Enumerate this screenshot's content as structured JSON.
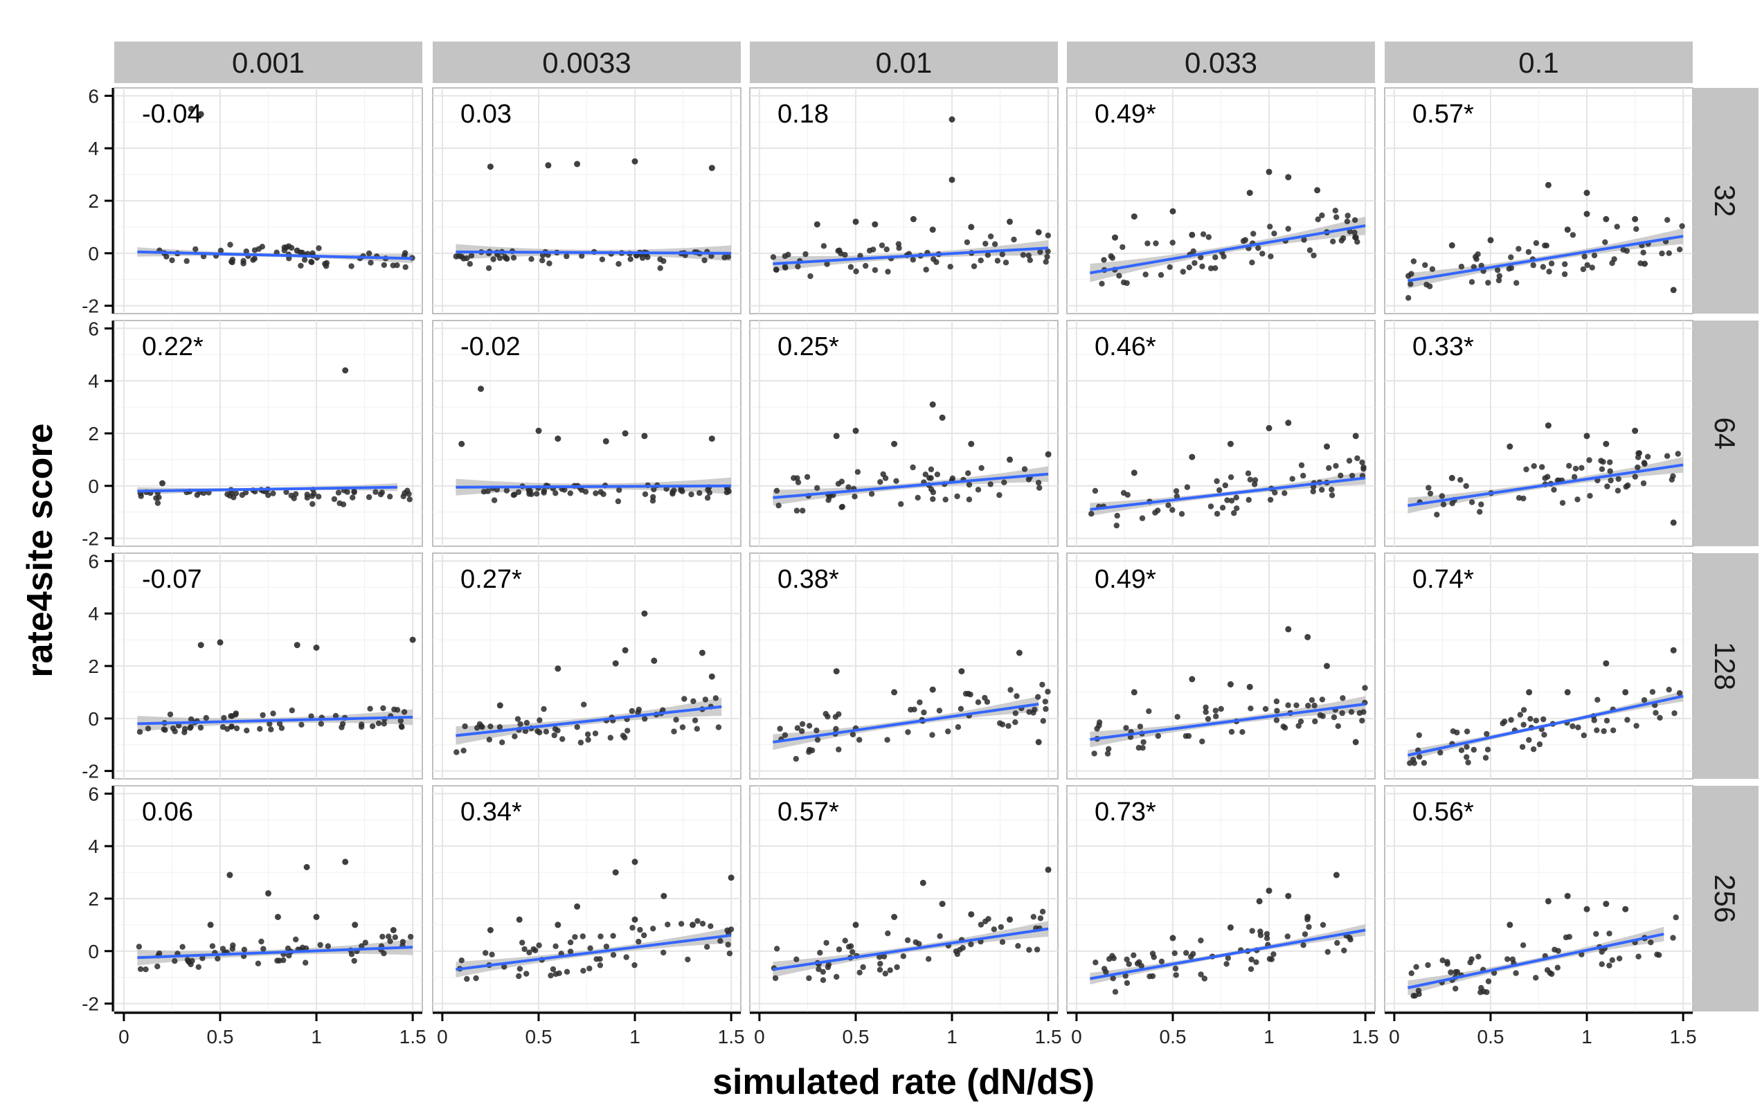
{
  "chart_data": {
    "type": "scatter",
    "xlabel": "simulated rate (dN/dS)",
    "ylabel": "rate4site score",
    "xlim": [
      -0.05,
      1.55
    ],
    "ylim": [
      -2.3,
      6.3
    ],
    "x_ticks": [
      0,
      0.5,
      1,
      1.5
    ],
    "x_tick_labels": [
      "0",
      "0.5",
      "1",
      "1.5"
    ],
    "y_ticks": [
      -2,
      0,
      2,
      4,
      6
    ],
    "y_tick_labels": [
      "-2",
      "0",
      "2",
      "4",
      "6"
    ],
    "grid": true,
    "column_facet": [
      "0.001",
      "0.0033",
      "0.01",
      "0.033",
      "0.1"
    ],
    "row_facet": [
      "32",
      "64",
      "128",
      "256"
    ],
    "correlations": [
      [
        "-0.04",
        "0.03",
        "0.18",
        "0.49*",
        "0.57*"
      ],
      [
        "0.22*",
        "-0.02",
        "0.25*",
        "0.46*",
        "0.33*"
      ],
      [
        "-0.07",
        "0.27*",
        "0.38*",
        "0.49*",
        "0.74*"
      ],
      [
        "0.06",
        "0.34*",
        "0.57*",
        "0.73*",
        "0.56*"
      ]
    ],
    "fit_lines": [
      [
        [
          0.07,
          0.05,
          1.5,
          -0.2
        ],
        [
          0.07,
          0.05,
          1.5,
          0.0
        ],
        [
          0.07,
          -0.4,
          1.5,
          0.2
        ],
        [
          0.07,
          -0.75,
          1.5,
          1.05
        ],
        [
          0.07,
          -1.05,
          1.5,
          0.65
        ]
      ],
      [
        [
          0.07,
          -0.2,
          1.42,
          -0.05
        ],
        [
          0.07,
          -0.05,
          1.5,
          0.0
        ],
        [
          0.07,
          -0.45,
          1.5,
          0.45
        ],
        [
          0.07,
          -0.9,
          1.5,
          0.3
        ],
        [
          0.07,
          -0.75,
          1.5,
          0.8
        ]
      ],
      [
        [
          0.07,
          -0.2,
          1.5,
          0.05
        ],
        [
          0.07,
          -0.65,
          1.45,
          0.45
        ],
        [
          0.07,
          -0.9,
          1.45,
          0.55
        ],
        [
          0.07,
          -0.8,
          1.5,
          0.55
        ],
        [
          0.07,
          -1.4,
          1.5,
          0.85
        ]
      ],
      [
        [
          0.07,
          -0.25,
          1.5,
          0.15
        ],
        [
          0.07,
          -0.7,
          1.5,
          0.6
        ],
        [
          0.07,
          -0.7,
          1.5,
          0.85
        ],
        [
          0.07,
          -1.05,
          1.5,
          0.8
        ],
        [
          0.07,
          -1.4,
          1.4,
          0.65
        ]
      ]
    ],
    "band_halfwidth": [
      [
        0.18,
        0.3,
        0.3,
        0.35,
        0.3
      ],
      [
        0.15,
        0.32,
        0.3,
        0.25,
        0.3
      ],
      [
        0.3,
        0.35,
        0.3,
        0.3,
        0.2
      ],
      [
        0.3,
        0.3,
        0.3,
        0.22,
        0.28
      ]
    ],
    "outliers": [
      [
        [
          [
            0.35,
            5.5
          ],
          [
            0.4,
            5.3
          ],
          [
            0.9,
            0.1
          ]
        ],
        [
          [
            0.25,
            3.3
          ],
          [
            0.55,
            3.35
          ],
          [
            0.7,
            3.4
          ],
          [
            1.0,
            3.5
          ],
          [
            1.4,
            3.25
          ]
        ],
        [
          [
            0.3,
            1.1
          ],
          [
            0.5,
            1.2
          ],
          [
            0.6,
            1.1
          ],
          [
            0.8,
            1.3
          ],
          [
            0.9,
            0.9
          ],
          [
            1.0,
            5.1
          ],
          [
            1.0,
            2.8
          ],
          [
            1.1,
            1.0
          ],
          [
            1.3,
            1.2
          ],
          [
            1.45,
            0.8
          ]
        ],
        [
          [
            0.2,
            0.6
          ],
          [
            0.3,
            1.4
          ],
          [
            0.5,
            1.6
          ],
          [
            0.6,
            0.7
          ],
          [
            0.9,
            2.3
          ],
          [
            1.0,
            3.1
          ],
          [
            1.1,
            2.9
          ],
          [
            1.25,
            2.4
          ],
          [
            1.3,
            0.8
          ],
          [
            1.45,
            0.6
          ]
        ],
        [
          [
            0.3,
            0.3
          ],
          [
            0.5,
            0.5
          ],
          [
            0.8,
            2.6
          ],
          [
            0.9,
            0.9
          ],
          [
            1.0,
            2.3
          ],
          [
            1.0,
            1.5
          ],
          [
            1.1,
            1.3
          ],
          [
            1.25,
            1.3
          ],
          [
            1.3,
            -0.4
          ],
          [
            1.45,
            -1.4
          ]
        ]
      ],
      [
        [
          [
            1.15,
            4.4
          ],
          [
            0.2,
            0.1
          ]
        ],
        [
          [
            0.1,
            1.6
          ],
          [
            0.2,
            3.7
          ],
          [
            0.5,
            2.1
          ],
          [
            0.6,
            1.8
          ],
          [
            0.85,
            1.7
          ],
          [
            0.95,
            2.0
          ],
          [
            1.05,
            1.9
          ],
          [
            1.4,
            1.8
          ]
        ],
        [
          [
            0.4,
            1.9
          ],
          [
            0.5,
            2.1
          ],
          [
            0.7,
            1.6
          ],
          [
            0.9,
            3.1
          ],
          [
            0.95,
            2.6
          ],
          [
            1.1,
            1.6
          ],
          [
            1.3,
            1.0
          ],
          [
            1.5,
            1.2
          ]
        ],
        [
          [
            0.3,
            0.5
          ],
          [
            0.6,
            1.1
          ],
          [
            0.8,
            1.6
          ],
          [
            1.0,
            2.2
          ],
          [
            1.1,
            2.4
          ],
          [
            1.3,
            1.5
          ],
          [
            1.45,
            1.9
          ]
        ],
        [
          [
            0.3,
            0.3
          ],
          [
            0.6,
            1.5
          ],
          [
            0.8,
            2.3
          ],
          [
            1.0,
            1.9
          ],
          [
            1.1,
            1.6
          ],
          [
            1.25,
            2.1
          ],
          [
            1.45,
            -1.4
          ]
        ]
      ],
      [
        [
          [
            0.4,
            2.8
          ],
          [
            0.5,
            2.9
          ],
          [
            0.9,
            2.8
          ],
          [
            1.0,
            2.7
          ],
          [
            1.5,
            3.0
          ]
        ],
        [
          [
            0.3,
            0.5
          ],
          [
            0.6,
            1.9
          ],
          [
            0.9,
            2.1
          ],
          [
            0.95,
            2.6
          ],
          [
            1.05,
            4.0
          ],
          [
            1.1,
            2.2
          ],
          [
            1.35,
            2.5
          ],
          [
            1.4,
            1.6
          ]
        ],
        [
          [
            0.4,
            1.8
          ],
          [
            0.7,
            1.0
          ],
          [
            0.9,
            1.1
          ],
          [
            1.05,
            1.8
          ],
          [
            1.35,
            2.5
          ],
          [
            1.45,
            -0.9
          ]
        ],
        [
          [
            0.3,
            1.0
          ],
          [
            0.6,
            1.5
          ],
          [
            0.8,
            1.3
          ],
          [
            0.9,
            1.2
          ],
          [
            1.1,
            3.4
          ],
          [
            1.2,
            3.1
          ],
          [
            1.3,
            2.0
          ],
          [
            1.45,
            -0.9
          ]
        ],
        [
          [
            0.7,
            1.0
          ],
          [
            0.9,
            1.0
          ],
          [
            1.1,
            2.1
          ],
          [
            1.2,
            1.0
          ],
          [
            1.45,
            2.6
          ]
        ]
      ],
      [
        [
          [
            0.45,
            1.0
          ],
          [
            0.55,
            2.9
          ],
          [
            0.75,
            2.2
          ],
          [
            0.8,
            1.3
          ],
          [
            0.95,
            3.2
          ],
          [
            1.0,
            1.3
          ],
          [
            1.15,
            3.4
          ],
          [
            1.2,
            1.0
          ],
          [
            1.4,
            0.8
          ]
        ],
        [
          [
            0.25,
            0.8
          ],
          [
            0.4,
            1.2
          ],
          [
            0.6,
            1.0
          ],
          [
            0.7,
            1.7
          ],
          [
            0.9,
            3.0
          ],
          [
            1.0,
            3.4
          ],
          [
            1.0,
            1.2
          ],
          [
            1.15,
            2.1
          ],
          [
            1.3,
            1.0
          ],
          [
            1.5,
            2.8
          ]
        ],
        [
          [
            0.5,
            1.0
          ],
          [
            0.7,
            1.3
          ],
          [
            0.85,
            2.6
          ],
          [
            0.95,
            1.8
          ],
          [
            1.1,
            1.4
          ],
          [
            1.3,
            1.2
          ],
          [
            1.5,
            3.1
          ]
        ],
        [
          [
            0.5,
            0.5
          ],
          [
            0.8,
            0.9
          ],
          [
            0.95,
            1.9
          ],
          [
            1.0,
            2.3
          ],
          [
            1.1,
            2.1
          ],
          [
            1.2,
            1.3
          ],
          [
            1.35,
            2.9
          ]
        ],
        [
          [
            0.6,
            1.0
          ],
          [
            0.8,
            1.9
          ],
          [
            0.9,
            2.1
          ],
          [
            1.0,
            1.6
          ],
          [
            1.1,
            1.8
          ],
          [
            1.2,
            1.6
          ],
          [
            1.3,
            0.5
          ]
        ]
      ]
    ],
    "colors": {
      "points": "#2b2b2b",
      "fit_line": "#3366ff",
      "band": "#bdbdbd",
      "strip": "#c4c4c4",
      "grid": "#e5e5e5",
      "panel_border": "#bfbfbf"
    }
  }
}
